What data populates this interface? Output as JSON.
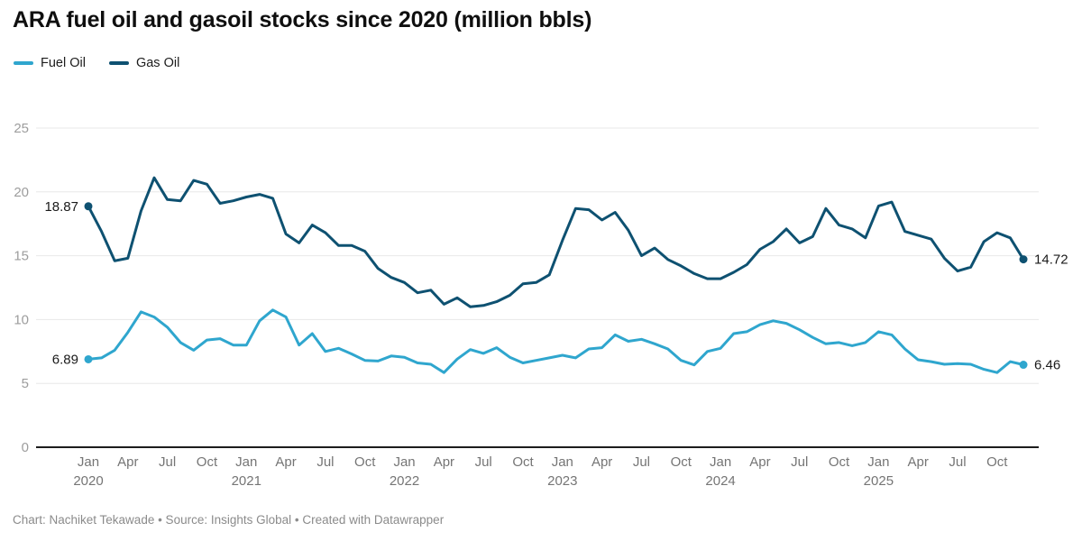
{
  "title": "ARA fuel oil and gasoil stocks since 2020 (million bbls)",
  "legend": {
    "items": [
      {
        "label": "Fuel Oil",
        "color": "#2fa6ce"
      },
      {
        "label": "Gas Oil",
        "color": "#0e5171"
      }
    ]
  },
  "footer": "Chart: Nachiket Tekawade • Source: Insights Global • Created with Datawrapper",
  "chart_data": {
    "type": "line",
    "title": "ARA fuel oil and gasoil stocks since 2020 (million bbls)",
    "x_unit": "month",
    "grid": "horizontal",
    "legend_position": "top-left",
    "y_axis": {
      "ticks": [
        0,
        5,
        10,
        15,
        20,
        25
      ],
      "range": [
        0,
        25
      ]
    },
    "months": [
      "Jan 2020",
      "Feb 2020",
      "Mar 2020",
      "Apr 2020",
      "May 2020",
      "Jun 2020",
      "Jul 2020",
      "Aug 2020",
      "Sep 2020",
      "Oct 2020",
      "Nov 2020",
      "Dec 2020",
      "Jan 2021",
      "Feb 2021",
      "Mar 2021",
      "Apr 2021",
      "May 2021",
      "Jun 2021",
      "Jul 2021",
      "Aug 2021",
      "Sep 2021",
      "Oct 2021",
      "Nov 2021",
      "Dec 2021",
      "Jan 2022",
      "Feb 2022",
      "Mar 2022",
      "Apr 2022",
      "May 2022",
      "Jun 2022",
      "Jul 2022",
      "Aug 2022",
      "Sep 2022",
      "Oct 2022",
      "Nov 2022",
      "Dec 2022",
      "Jan 2023",
      "Feb 2023",
      "Mar 2023",
      "Apr 2023",
      "May 2023",
      "Jun 2023",
      "Jul 2023",
      "Aug 2023",
      "Sep 2023",
      "Oct 2023",
      "Nov 2023",
      "Dec 2023",
      "Jan 2024",
      "Feb 2024",
      "Mar 2024",
      "Apr 2024",
      "May 2024",
      "Jun 2024",
      "Jul 2024",
      "Aug 2024",
      "Sep 2024",
      "Oct 2024",
      "Nov 2024",
      "Dec 2024",
      "Jan 2025",
      "Feb 2025",
      "Mar 2025",
      "Apr 2025",
      "May 2025",
      "Jun 2025",
      "Jul 2025",
      "Aug 2025",
      "Sep 2025",
      "Oct 2025",
      "Nov 2025",
      "Dec 2025"
    ],
    "series": [
      {
        "name": "Fuel Oil",
        "color": "#2fa6ce",
        "start_label": "6.89",
        "end_label": "6.46",
        "values": [
          6.89,
          7.0,
          7.6,
          9.0,
          10.6,
          10.2,
          9.4,
          8.2,
          7.6,
          8.4,
          8.5,
          8.0,
          8.0,
          9.9,
          10.75,
          10.2,
          8.0,
          8.9,
          7.5,
          7.75,
          7.3,
          6.8,
          6.75,
          7.15,
          7.05,
          6.6,
          6.5,
          5.85,
          6.9,
          7.65,
          7.35,
          7.8,
          7.05,
          6.6,
          6.8,
          7.0,
          7.2,
          7.0,
          7.7,
          7.8,
          8.8,
          8.3,
          8.45,
          8.1,
          7.7,
          6.8,
          6.45,
          7.5,
          7.75,
          8.9,
          9.05,
          9.6,
          9.9,
          9.7,
          9.2,
          8.6,
          8.1,
          8.2,
          7.95,
          8.2,
          9.05,
          8.8,
          7.7,
          6.85,
          6.7,
          6.5,
          6.55,
          6.5,
          6.1,
          5.85,
          6.7,
          6.46
        ]
      },
      {
        "name": "Gas Oil",
        "color": "#0e5171",
        "start_label": "18.87",
        "end_label": "14.72",
        "values": [
          18.87,
          16.9,
          14.6,
          14.8,
          18.5,
          21.1,
          19.4,
          19.3,
          20.9,
          20.6,
          19.1,
          19.3,
          19.6,
          19.8,
          19.5,
          16.7,
          16.0,
          17.4,
          16.8,
          15.8,
          15.8,
          15.35,
          14.0,
          13.3,
          12.9,
          12.1,
          12.3,
          11.2,
          11.7,
          11.0,
          11.1,
          11.4,
          11.9,
          12.8,
          12.9,
          13.5,
          16.2,
          18.7,
          18.6,
          17.8,
          18.4,
          17.0,
          15.0,
          15.6,
          14.7,
          14.2,
          13.6,
          13.2,
          13.2,
          13.7,
          14.3,
          15.5,
          16.1,
          17.1,
          16.0,
          16.5,
          18.7,
          17.4,
          17.1,
          16.4,
          18.9,
          19.2,
          16.9,
          16.6,
          16.3,
          14.8,
          13.8,
          14.1,
          16.1,
          16.8,
          16.4,
          14.72
        ]
      }
    ]
  }
}
